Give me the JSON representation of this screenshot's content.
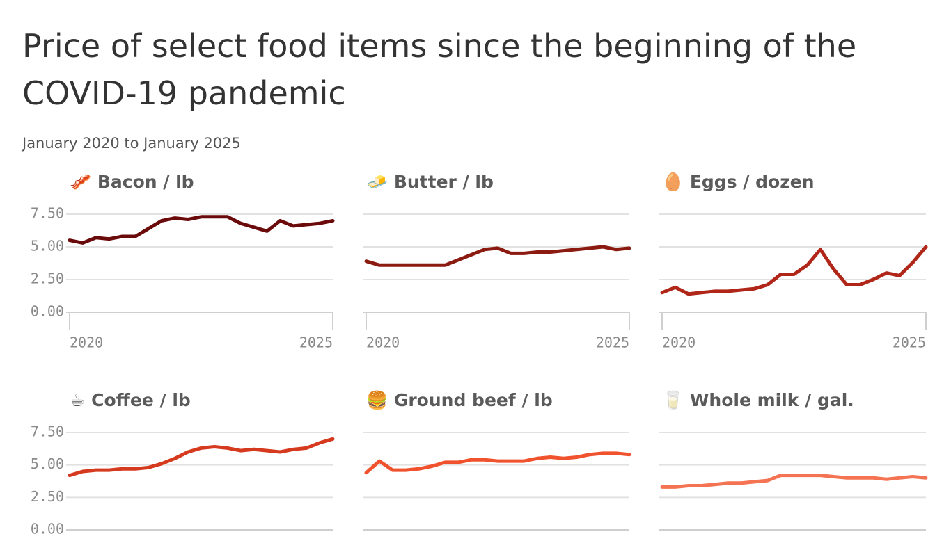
{
  "title": "Price of select food items since the beginning of the COVID-19 pandemic",
  "subtitle": "January 2020 to January 2025",
  "chart_data": [
    {
      "type": "line",
      "title": "🥓 Bacon / lb",
      "color": "#6b0a0a",
      "values": [
        5.5,
        5.3,
        5.7,
        5.6,
        5.8,
        5.8,
        6.4,
        7.0,
        7.2,
        7.1,
        7.3,
        7.3,
        7.3,
        6.8,
        6.5,
        6.2,
        7.0,
        6.6,
        6.7,
        6.8,
        7.0
      ],
      "xlim": [
        2020,
        2025
      ],
      "xticks": [
        2020,
        2025
      ],
      "ylim": [
        0,
        7.5
      ],
      "yticks": [
        {
          "value": 0,
          "label": "0.00"
        },
        {
          "value": 2.5,
          "label": "2.50"
        },
        {
          "value": 5,
          "label": "5.00"
        },
        {
          "value": 7.5,
          "label": "7.50"
        }
      ],
      "grid": true
    },
    {
      "type": "line",
      "title": "🧈 Butter / lb",
      "color": "#8b1a10",
      "values": [
        3.9,
        3.6,
        3.6,
        3.6,
        3.6,
        3.6,
        3.6,
        4.0,
        4.4,
        4.8,
        4.9,
        4.5,
        4.5,
        4.6,
        4.6,
        4.7,
        4.8,
        4.9,
        5.0,
        4.8,
        4.9
      ],
      "xlim": [
        2020,
        2025
      ],
      "xticks": [
        2020,
        2025
      ],
      "ylim": [
        0,
        7.5
      ],
      "yticks": [
        0,
        2.5,
        5,
        7.5
      ],
      "grid": true
    },
    {
      "type": "line",
      "title": "🥚 Eggs / dozen",
      "color": "#b0271a",
      "values": [
        1.5,
        1.9,
        1.4,
        1.5,
        1.6,
        1.6,
        1.7,
        1.8,
        2.1,
        2.9,
        2.9,
        3.6,
        4.8,
        3.3,
        2.1,
        2.1,
        2.5,
        3.0,
        2.8,
        3.8,
        5.0
      ],
      "xlim": [
        2020,
        2025
      ],
      "xticks": [
        2020,
        2025
      ],
      "ylim": [
        0,
        7.5
      ],
      "yticks": [
        0,
        2.5,
        5,
        7.5
      ],
      "grid": true
    },
    {
      "type": "line",
      "title": "☕ Coffee / lb",
      "color": "#d63a1e",
      "values": [
        4.2,
        4.5,
        4.6,
        4.6,
        4.7,
        4.7,
        4.8,
        5.1,
        5.5,
        6.0,
        6.3,
        6.4,
        6.3,
        6.1,
        6.2,
        6.1,
        6.0,
        6.2,
        6.3,
        6.7,
        7.0
      ],
      "xlim": [
        2020,
        2025
      ],
      "ylim": [
        0,
        7.5
      ],
      "yticks": [
        {
          "value": 0,
          "label": "0.00"
        },
        {
          "value": 2.5,
          "label": "2.50"
        },
        {
          "value": 5,
          "label": "5.00"
        },
        {
          "value": 7.5,
          "label": "7.50"
        }
      ],
      "grid": true
    },
    {
      "type": "line",
      "title": "🍔 Ground beef / lb",
      "color": "#f0522e",
      "values": [
        4.4,
        5.3,
        4.6,
        4.6,
        4.7,
        4.9,
        5.2,
        5.2,
        5.4,
        5.4,
        5.3,
        5.3,
        5.3,
        5.5,
        5.6,
        5.5,
        5.6,
        5.8,
        5.9,
        5.9,
        5.8
      ],
      "xlim": [
        2020,
        2025
      ],
      "ylim": [
        0,
        7.5
      ],
      "yticks": [
        0,
        2.5,
        5,
        7.5
      ],
      "grid": true
    },
    {
      "type": "line",
      "title": "🥛 Whole milk / gal.",
      "color": "#f47352",
      "values": [
        3.3,
        3.3,
        3.4,
        3.4,
        3.5,
        3.6,
        3.6,
        3.7,
        3.8,
        4.2,
        4.2,
        4.2,
        4.2,
        4.1,
        4.0,
        4.0,
        4.0,
        3.9,
        4.0,
        4.1,
        4.0
      ],
      "xlim": [
        2020,
        2025
      ],
      "ylim": [
        0,
        7.5
      ],
      "yticks": [
        0,
        2.5,
        5,
        7.5
      ],
      "grid": true
    }
  ]
}
